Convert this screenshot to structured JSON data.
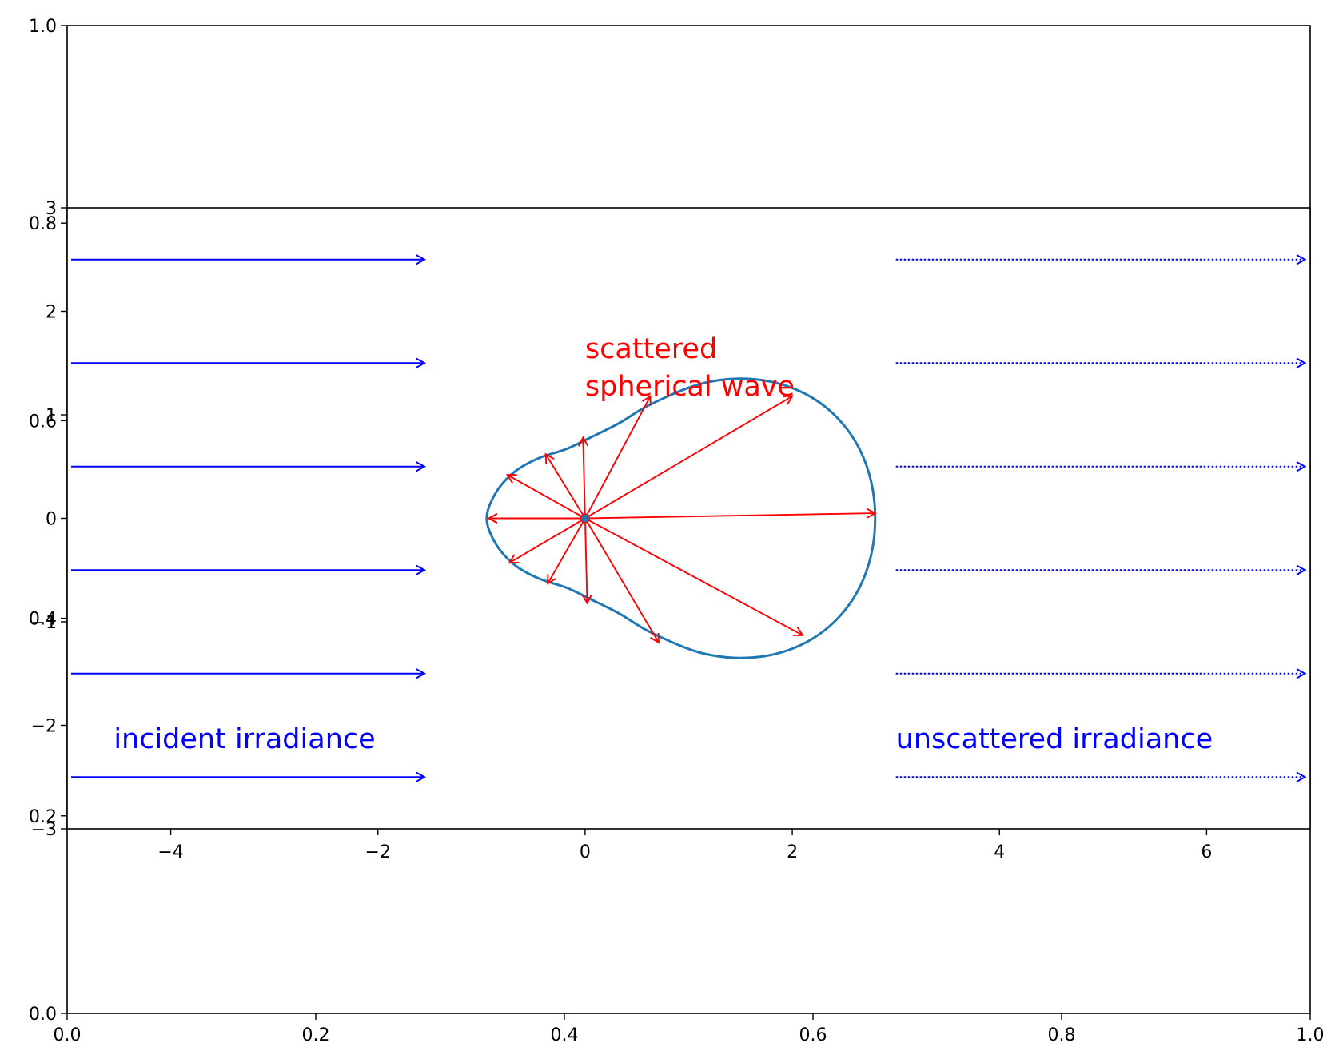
{
  "chart_data": [
    {
      "name": "outer-axes",
      "type": "scatter",
      "xlim": [
        0.0,
        1.0
      ],
      "ylim": [
        0.0,
        1.0
      ],
      "x_ticks": [
        "0.0",
        "0.2",
        "0.4",
        "0.6",
        "0.8",
        "1.0"
      ],
      "y_ticks": [
        "0.0",
        "0.2",
        "0.4",
        "0.6",
        "0.8",
        "1.0"
      ],
      "grid": false,
      "series": []
    },
    {
      "name": "scattering-axes",
      "type": "line",
      "xlim": [
        -5,
        7
      ],
      "ylim": [
        -3,
        3
      ],
      "x_ticks": [
        "−4",
        "−2",
        "0",
        "2",
        "4",
        "6"
      ],
      "y_ticks": [
        "−3",
        "−2",
        "−1",
        "0",
        "1",
        "2",
        "3"
      ],
      "grid": false,
      "colors": {
        "incident": "#0000ff",
        "scattered": "#ff0000",
        "curve": "#1f77b4",
        "source": "#1f77b4"
      },
      "incident_arrows": {
        "x_start": -5,
        "x_end": -1.55,
        "y": [
          2.5,
          1.5,
          0.5,
          -0.5,
          -1.5,
          -2.5
        ],
        "style": "solid"
      },
      "unscattered_arrows": {
        "x_start": 3,
        "x_end": 6.95,
        "y": [
          2.5,
          1.5,
          0.5,
          -0.5,
          -1.5,
          -2.5
        ],
        "style": "dotted"
      },
      "scattered_arrows": {
        "origin": [
          0,
          0
        ],
        "tips": [
          [
            2.8,
            0.05
          ],
          [
            2.0,
            1.18
          ],
          [
            0.63,
            1.18
          ],
          [
            -0.02,
            0.78
          ],
          [
            -0.38,
            0.62
          ],
          [
            -0.75,
            0.42
          ],
          [
            -0.93,
            0.0
          ],
          [
            -0.73,
            -0.43
          ],
          [
            -0.36,
            -0.63
          ],
          [
            0.02,
            -0.82
          ],
          [
            0.71,
            -1.2
          ],
          [
            2.1,
            -1.13
          ]
        ]
      },
      "phase_function_curve": {
        "x": [
          2.8,
          2.72,
          2.49,
          2.13,
          1.67,
          1.16,
          0.65,
          0.33,
          0.05,
          -0.18,
          -0.45,
          -0.68,
          -0.86,
          -0.95,
          -0.86,
          -0.68,
          -0.45,
          -0.18,
          0.05,
          0.33,
          0.65,
          1.16,
          1.67,
          2.13,
          2.49,
          2.72,
          2.8
        ],
        "y": [
          0.0,
          0.5,
          0.91,
          1.2,
          1.34,
          1.31,
          1.11,
          0.92,
          0.78,
          0.67,
          0.58,
          0.45,
          0.25,
          0.0,
          -0.25,
          -0.45,
          -0.58,
          -0.67,
          -0.78,
          -0.92,
          -1.11,
          -1.31,
          -1.34,
          -1.2,
          -0.91,
          -0.5,
          0.0
        ]
      },
      "source_point": [
        0,
        0
      ],
      "annotations": [
        {
          "text": "scattered\nspherical wave",
          "lines": [
            "scattered",
            "spherical wave"
          ],
          "x": 0,
          "y": 1.55,
          "color": "#ff0000"
        },
        {
          "text": "incident irradiance",
          "x": -4.55,
          "y": -2.22,
          "color": "#0000ff"
        },
        {
          "text": "unscattered irradiance",
          "x": 3.0,
          "y": -2.22,
          "color": "#0000ff"
        }
      ]
    }
  ]
}
